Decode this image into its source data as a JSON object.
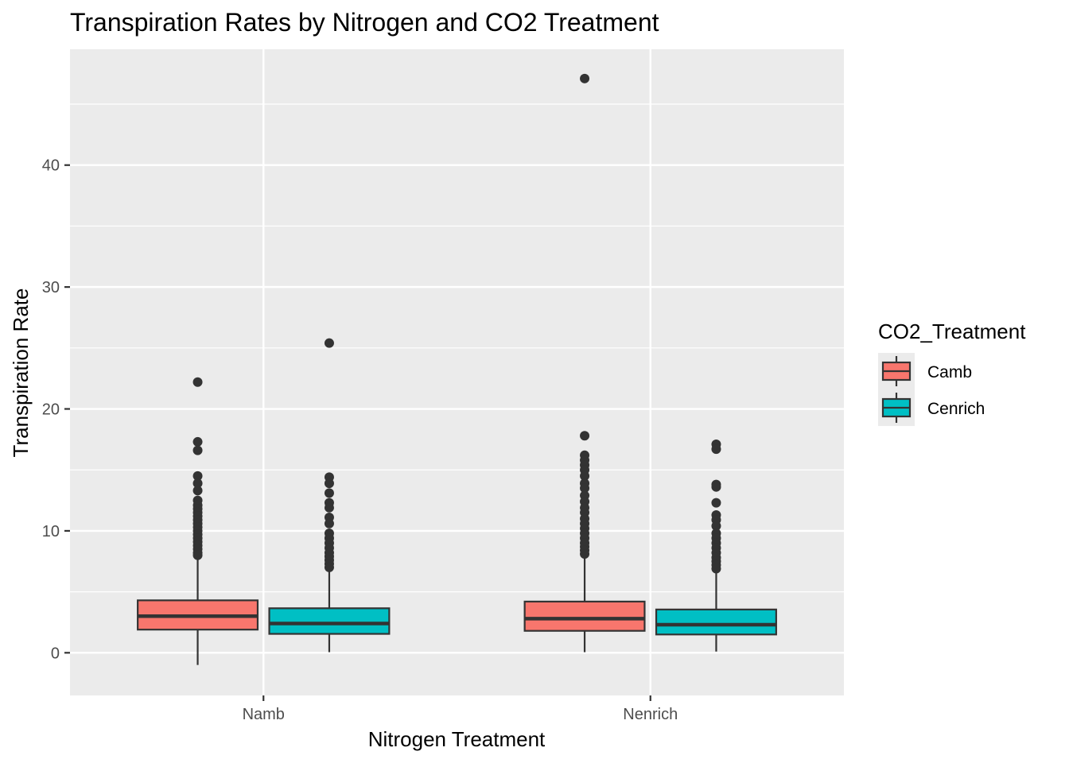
{
  "chart_data": {
    "type": "box",
    "title": "Transpiration Rates by Nitrogen and CO2 Treatment",
    "xlabel": "Nitrogen Treatment",
    "ylabel": "Transpiration Rate",
    "categories": [
      "Namb",
      "Nenrich"
    ],
    "ylim": [
      -3.5,
      49.5
    ],
    "yticks": [
      0,
      10,
      20,
      30,
      40
    ],
    "grid": true,
    "legend": {
      "title": "CO2_Treatment",
      "placement": "right",
      "entries": [
        "Camb",
        "Cenrich"
      ]
    },
    "series": [
      {
        "name": "Camb",
        "color": "#F8766D",
        "boxes": [
          {
            "category": "Namb",
            "whisker_low": -1.0,
            "q1": 1.9,
            "median": 3.0,
            "q3": 4.3,
            "whisker_high": 7.8,
            "outliers": [
              22.2,
              17.3,
              16.6,
              14.5,
              13.9,
              13.3,
              12.5,
              12.1,
              11.8,
              11.5,
              11.2,
              10.9,
              10.6,
              10.3,
              10.0,
              9.7,
              9.4,
              9.1,
              8.8,
              8.5,
              8.2,
              8.0
            ]
          },
          {
            "category": "Nenrich",
            "whisker_low": 0.05,
            "q1": 1.8,
            "median": 2.8,
            "q3": 4.2,
            "whisker_high": 7.8,
            "outliers": [
              47.1,
              17.8,
              16.2,
              15.8,
              15.4,
              15.0,
              14.5,
              13.9,
              13.5,
              12.9,
              12.4,
              11.9,
              11.5,
              11.0,
              10.6,
              10.2,
              9.8,
              9.4,
              9.0,
              8.7,
              8.4,
              8.1
            ]
          }
        ]
      },
      {
        "name": "Cenrich",
        "color": "#00BFC4",
        "boxes": [
          {
            "category": "Namb",
            "whisker_low": 0.05,
            "q1": 1.55,
            "median": 2.4,
            "q3": 3.65,
            "whisker_high": 6.8,
            "outliers": [
              25.4,
              14.4,
              13.9,
              13.1,
              12.3,
              11.9,
              11.1,
              10.6,
              9.8,
              9.4,
              9.0,
              8.6,
              8.2,
              7.9,
              7.6,
              7.3,
              7.0
            ]
          },
          {
            "category": "Nenrich",
            "whisker_low": 0.1,
            "q1": 1.5,
            "median": 2.3,
            "q3": 3.55,
            "whisker_high": 6.6,
            "outliers": [
              17.1,
              16.7,
              13.8,
              13.6,
              12.3,
              11.3,
              10.9,
              10.4,
              9.8,
              9.4,
              9.0,
              8.6,
              8.2,
              7.8,
              7.5,
              7.2,
              6.9
            ]
          }
        ]
      }
    ]
  }
}
